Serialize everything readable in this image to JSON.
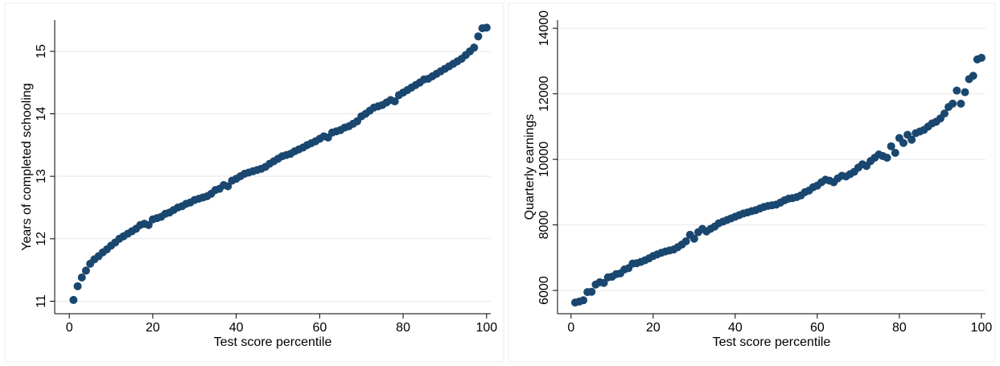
{
  "chart_data": [
    {
      "type": "scatter",
      "xlabel": "Test score percentile",
      "ylabel": "Years of completed schooling",
      "color": "#1a476f",
      "grid": true,
      "xlim": [
        -3.5,
        101
      ],
      "ylim": [
        10.8,
        15.5
      ],
      "xticks": [
        0,
        20,
        40,
        60,
        80,
        100
      ],
      "yticks": [
        11,
        12,
        13,
        14,
        15
      ],
      "x": [
        1,
        2,
        3,
        4,
        5,
        6,
        7,
        8,
        9,
        10,
        11,
        12,
        13,
        14,
        15,
        16,
        17,
        18,
        19,
        20,
        21,
        22,
        23,
        24,
        25,
        26,
        27,
        28,
        29,
        30,
        31,
        32,
        33,
        34,
        35,
        36,
        37,
        38,
        39,
        40,
        41,
        42,
        43,
        44,
        45,
        46,
        47,
        48,
        49,
        50,
        51,
        52,
        53,
        54,
        55,
        56,
        57,
        58,
        59,
        60,
        61,
        62,
        63,
        64,
        65,
        66,
        67,
        68,
        69,
        70,
        71,
        72,
        73,
        74,
        75,
        76,
        77,
        78,
        79,
        80,
        81,
        82,
        83,
        84,
        85,
        86,
        87,
        88,
        89,
        90,
        91,
        92,
        93,
        94,
        95,
        96,
        97,
        98,
        99,
        100
      ],
      "values": [
        11.02,
        11.24,
        11.38,
        11.49,
        11.6,
        11.67,
        11.72,
        11.78,
        11.83,
        11.89,
        11.94,
        12.0,
        12.04,
        12.08,
        12.12,
        12.16,
        12.22,
        12.24,
        12.22,
        12.31,
        12.33,
        12.35,
        12.4,
        12.42,
        12.46,
        12.5,
        12.52,
        12.56,
        12.58,
        12.62,
        12.64,
        12.66,
        12.68,
        12.72,
        12.78,
        12.8,
        12.86,
        12.84,
        12.93,
        12.96,
        13.0,
        13.04,
        13.06,
        13.08,
        13.1,
        13.12,
        13.15,
        13.2,
        13.24,
        13.28,
        13.32,
        13.34,
        13.36,
        13.4,
        13.43,
        13.46,
        13.5,
        13.53,
        13.56,
        13.6,
        13.64,
        13.62,
        13.7,
        13.72,
        13.74,
        13.78,
        13.8,
        13.84,
        13.88,
        13.96,
        14.0,
        14.05,
        14.1,
        14.12,
        14.14,
        14.18,
        14.22,
        14.2,
        14.3,
        14.34,
        14.38,
        14.42,
        14.46,
        14.5,
        14.55,
        14.56,
        14.6,
        14.64,
        14.68,
        14.72,
        14.76,
        14.8,
        14.84,
        14.88,
        14.94,
        15.0,
        15.06,
        15.24,
        15.37,
        15.38
      ]
    },
    {
      "type": "scatter",
      "xlabel": "Test score percentile",
      "ylabel": "Quarterly earnings",
      "color": "#1a476f",
      "grid": true,
      "xlim": [
        -3.3,
        101
      ],
      "ylim": [
        5290,
        14250
      ],
      "xticks": [
        0,
        20,
        40,
        60,
        80,
        100
      ],
      "yticks": [
        6000,
        8000,
        10000,
        12000,
        14000
      ],
      "x": [
        1,
        2,
        3,
        4,
        5,
        6,
        7,
        8,
        9,
        10,
        11,
        12,
        13,
        14,
        15,
        16,
        17,
        18,
        19,
        20,
        21,
        22,
        23,
        24,
        25,
        26,
        27,
        28,
        29,
        30,
        31,
        32,
        33,
        34,
        35,
        36,
        37,
        38,
        39,
        40,
        41,
        42,
        43,
        44,
        45,
        46,
        47,
        48,
        49,
        50,
        51,
        52,
        53,
        54,
        55,
        56,
        57,
        58,
        59,
        60,
        61,
        62,
        63,
        64,
        65,
        66,
        67,
        68,
        69,
        70,
        71,
        72,
        73,
        74,
        75,
        76,
        77,
        78,
        79,
        80,
        81,
        82,
        83,
        84,
        85,
        86,
        87,
        88,
        89,
        90,
        91,
        92,
        93,
        94,
        95,
        96,
        97,
        98,
        99,
        100
      ],
      "values": [
        5630,
        5660,
        5700,
        5950,
        5960,
        6180,
        6250,
        6230,
        6400,
        6420,
        6500,
        6520,
        6640,
        6680,
        6820,
        6830,
        6870,
        6920,
        6980,
        7050,
        7100,
        7150,
        7190,
        7220,
        7250,
        7320,
        7400,
        7500,
        7700,
        7580,
        7780,
        7880,
        7800,
        7880,
        7950,
        8050,
        8100,
        8150,
        8200,
        8250,
        8300,
        8350,
        8380,
        8420,
        8450,
        8500,
        8550,
        8580,
        8600,
        8620,
        8680,
        8750,
        8800,
        8820,
        8850,
        8900,
        9000,
        9050,
        9150,
        9200,
        9300,
        9380,
        9350,
        9300,
        9420,
        9500,
        9480,
        9550,
        9620,
        9750,
        9850,
        9800,
        9950,
        10050,
        10150,
        10100,
        10050,
        10400,
        10200,
        10650,
        10500,
        10750,
        10600,
        10800,
        10850,
        10900,
        11000,
        11100,
        11150,
        11250,
        11400,
        11600,
        11700,
        12100,
        11700,
        12050,
        12450,
        12550,
        13050,
        13100
      ]
    }
  ]
}
